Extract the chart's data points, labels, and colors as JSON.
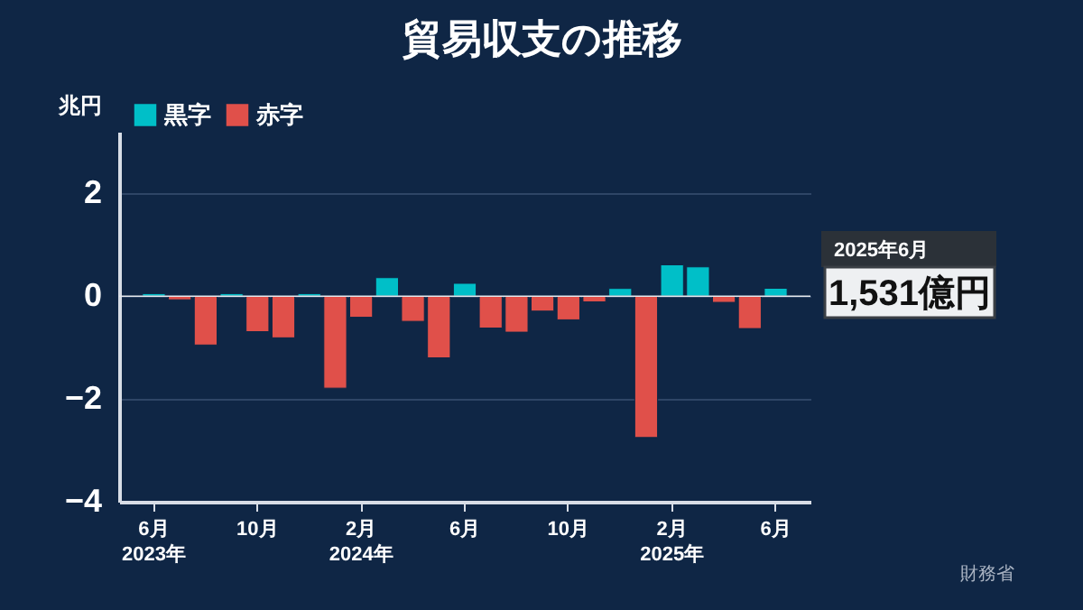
{
  "chart_data": {
    "type": "bar",
    "title": "貿易収支の推移",
    "ylabel": "兆円",
    "categories": [
      "6月\n2023年",
      null,
      null,
      null,
      "10月",
      null,
      null,
      null,
      "2月\n2024年",
      null,
      null,
      null,
      "6月",
      null,
      null,
      null,
      "10月",
      null,
      null,
      null,
      "2月\n2025年",
      null,
      null,
      null,
      "6月"
    ],
    "series": [
      {
        "name": "黒字",
        "color": "#00bfc8",
        "values": [
          0.05,
          null,
          null,
          0.05,
          null,
          null,
          0.05,
          null,
          null,
          0.36,
          null,
          null,
          0.25,
          null,
          null,
          null,
          null,
          null,
          0.15,
          null,
          0.61,
          0.57,
          null,
          null,
          0.1531
        ]
      },
      {
        "name": "赤字",
        "color": "#e0504a",
        "values": [
          null,
          -0.07,
          -0.95,
          null,
          -0.69,
          -0.81,
          null,
          -1.79,
          -0.41,
          null,
          -0.49,
          -1.2,
          null,
          -0.62,
          -0.7,
          -0.29,
          -0.46,
          -0.11,
          null,
          -2.75,
          null,
          null,
          -0.12,
          -0.63,
          null
        ]
      }
    ],
    "ylim": [
      -4,
      3.2
    ],
    "yticks": [
      -4,
      -2,
      0,
      2
    ],
    "grid": "y",
    "legend": "top left",
    "annotations": [
      "2025年6月",
      "1,531億円",
      "財務省"
    ]
  }
}
